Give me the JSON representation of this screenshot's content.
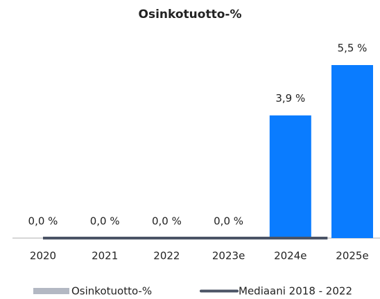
{
  "chart_data": {
    "type": "bar",
    "title": "Osinkotuotto-%",
    "categories": [
      "2020",
      "2021",
      "2022",
      "2023e",
      "2024e",
      "2025e"
    ],
    "series": [
      {
        "name": "Osinkotuotto-%",
        "color": "#0a7cff",
        "legend_color": "#b3b8c3",
        "values": [
          0,
          0,
          0,
          0,
          3.9,
          5.5
        ],
        "value_labels": [
          "0,0 %",
          "0,0 %",
          "0,0 %",
          "0,0 %",
          "3,9 %",
          "5,5 %"
        ]
      }
    ],
    "median": {
      "name": "Mediaani 2018 - 2022",
      "color": "#4b5466",
      "value": 0
    }
  }
}
